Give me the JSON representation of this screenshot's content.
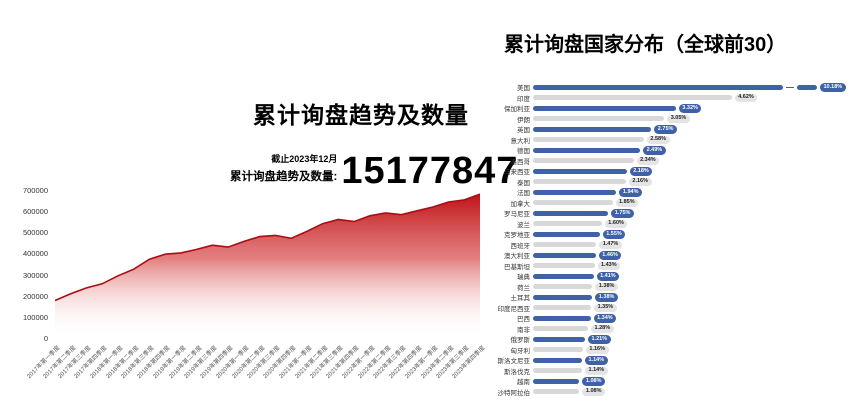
{
  "colors": {
    "blue": "#3e61a8",
    "bar_gray": "#d8d8d8",
    "badge_gray_bg": "#e4e4e4",
    "badge_gray_text": "#222222",
    "red_top": "#bf1318",
    "red_stroke": "#a80e12"
  },
  "chart_data": [
    {
      "type": "area",
      "title": "累计询盘趋势及数量",
      "as_of": "截止2023年12月",
      "stat_label": "累计询盘趋势及数量:",
      "total_value": "15177847",
      "ylim": [
        0,
        700000
      ],
      "yticks": [
        0,
        100000,
        200000,
        300000,
        400000,
        500000,
        600000,
        700000
      ],
      "grid": false,
      "legend": false,
      "x": [
        "2017年第一季度",
        "2017年第二季度",
        "2017年第三季度",
        "2017年第四季度",
        "2018年第一季度",
        "2018年第二季度",
        "2018年第三季度",
        "2018年第四季度",
        "2019年第一季度",
        "2019年第二季度",
        "2019年第三季度",
        "2019年第四季度",
        "2020年第一季度",
        "2020年第二季度",
        "2020年第三季度",
        "2020年第四季度",
        "2021年第一季度",
        "2021年第二季度",
        "2021年第三季度",
        "2021年第四季度",
        "2022年第一季度",
        "2022年第二季度",
        "2022年第三季度",
        "2022年第四季度",
        "2023年第一季度",
        "2023年第二季度",
        "2023年第三季度",
        "2023年第四季度"
      ],
      "values": [
        180000,
        212000,
        240000,
        260000,
        298000,
        330000,
        378000,
        402000,
        408000,
        425000,
        445000,
        436000,
        463000,
        486000,
        492000,
        478000,
        511000,
        548000,
        568000,
        558000,
        586000,
        600000,
        591000,
        610000,
        628000,
        652000,
        662000,
        690000
      ]
    },
    {
      "type": "bar",
      "orientation": "horizontal",
      "title": "累计询盘国家分布（全球前30）",
      "unit": "%",
      "broken_axis_on_first": true,
      "categories": [
        "美国",
        "印度",
        "保加利亚",
        "伊朗",
        "英国",
        "意大利",
        "德国",
        "墨西哥",
        "马来西亚",
        "泰国",
        "法国",
        "加拿大",
        "罗马尼亚",
        "波兰",
        "克罗地亚",
        "西班牙",
        "澳大利亚",
        "巴基斯坦",
        "瑞典",
        "荷兰",
        "土耳其",
        "印度尼西亚",
        "巴西",
        "南非",
        "俄罗斯",
        "匈牙利",
        "斯洛文尼亚",
        "斯洛伐克",
        "越南",
        "沙特阿拉伯"
      ],
      "values": [
        10.18,
        4.62,
        3.32,
        3.05,
        2.75,
        2.58,
        2.49,
        2.34,
        2.18,
        2.16,
        1.94,
        1.85,
        1.75,
        1.6,
        1.55,
        1.47,
        1.46,
        1.43,
        1.41,
        1.38,
        1.38,
        1.35,
        1.34,
        1.28,
        1.21,
        1.16,
        1.14,
        1.14,
        1.08,
        1.08
      ],
      "value_labels": [
        "10.18%",
        "4.62%",
        "3.32%",
        "3.05%",
        "2.75%",
        "2.58%",
        "2.49%",
        "2.34%",
        "2.18%",
        "2.16%",
        "1.94%",
        "1.85%",
        "1.75%",
        "1.60%",
        "1.55%",
        "1.47%",
        "1.46%",
        "1.43%",
        "1.41%",
        "1.38%",
        "1.38%",
        "1.35%",
        "1.34%",
        "1.28%",
        "1.21%",
        "1.16%",
        "1.14%",
        "1.14%",
        "1.08%",
        "1.08%"
      ]
    }
  ]
}
